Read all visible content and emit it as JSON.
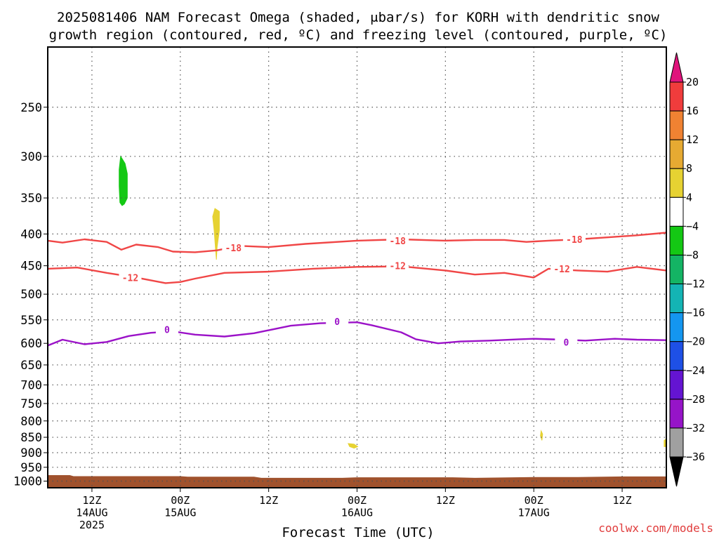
{
  "chart_data": {
    "type": "contour",
    "title_line1": "2025081406 NAM Forecast Omega (shaded, μbar/s) for KORH with dendritic snow",
    "title_line2": "growth region (contoured, red, ºC) and freezing level (contoured, purple, ºC)",
    "xlabel": "Forecast Time (UTC)",
    "watermark": "coolwx.com/models",
    "x_unit": "forecast hours since 2025-08-14 06Z",
    "xlim": [
      0,
      84
    ],
    "ylim_hPa": [
      200,
      1025
    ],
    "y_scale": "log",
    "grid": true,
    "y_ticks": [
      250,
      300,
      350,
      400,
      450,
      500,
      550,
      600,
      650,
      700,
      750,
      800,
      850,
      900,
      950,
      1000
    ],
    "x_ticks": [
      {
        "x": 6,
        "lines": [
          "12Z",
          "14AUG",
          "2025"
        ]
      },
      {
        "x": 18,
        "lines": [
          "00Z",
          "15AUG"
        ]
      },
      {
        "x": 30,
        "lines": [
          "12Z"
        ]
      },
      {
        "x": 42,
        "lines": [
          "00Z",
          "16AUG"
        ]
      },
      {
        "x": 54,
        "lines": [
          "12Z"
        ]
      },
      {
        "x": 66,
        "lines": [
          "00Z",
          "17AUG"
        ]
      },
      {
        "x": 78,
        "lines": [
          "12Z"
        ]
      }
    ],
    "colorbar": {
      "labels": [
        "20",
        "16",
        "12",
        "8",
        "4",
        "−4",
        "−8",
        "−12",
        "−16",
        "−20",
        "−24",
        "−28",
        "−32",
        "−36"
      ],
      "top_triangle_color": "#e0147c",
      "bottom_triangle_color": "#000000",
      "bins": [
        {
          "color": "#f03c3c"
        },
        {
          "color": "#f08232"
        },
        {
          "color": "#e6aa32"
        },
        {
          "color": "#e6d232"
        },
        {
          "color": "#ffffff"
        },
        {
          "color": "#14c814"
        },
        {
          "color": "#14b464"
        },
        {
          "color": "#14b4b4"
        },
        {
          "color": "#1496f0"
        },
        {
          "color": "#1e50e6"
        },
        {
          "color": "#6414d2"
        },
        {
          "color": "#9614c8"
        },
        {
          "color": "#a0a0a0"
        }
      ]
    },
    "series": [
      {
        "label": "-18",
        "color": "#f04646",
        "label_at": [
          {
            "x": 25.2,
            "p": 421
          },
          {
            "x": 47.5,
            "p": 410
          },
          {
            "x": 71.5,
            "p": 408
          }
        ],
        "points": [
          [
            0,
            410
          ],
          [
            2,
            413
          ],
          [
            5,
            408
          ],
          [
            8,
            412
          ],
          [
            10,
            424
          ],
          [
            12,
            416
          ],
          [
            15,
            420
          ],
          [
            17,
            427
          ],
          [
            20,
            428
          ],
          [
            23,
            425
          ],
          [
            26,
            418
          ],
          [
            30,
            420
          ],
          [
            35,
            415
          ],
          [
            42,
            410
          ],
          [
            48,
            408
          ],
          [
            54,
            410
          ],
          [
            58,
            409
          ],
          [
            62,
            409
          ],
          [
            65,
            412
          ],
          [
            68,
            410
          ],
          [
            72,
            408
          ],
          [
            76,
            405
          ],
          [
            80,
            402
          ],
          [
            84,
            398
          ]
        ]
      },
      {
        "label": "-12",
        "color": "#f04646",
        "label_at": [
          {
            "x": 11.2,
            "p": 470
          },
          {
            "x": 47.5,
            "p": 450
          },
          {
            "x": 69.8,
            "p": 455
          }
        ],
        "points": [
          [
            0,
            455
          ],
          [
            4,
            453
          ],
          [
            8,
            462
          ],
          [
            12,
            470
          ],
          [
            16,
            480
          ],
          [
            18,
            478
          ],
          [
            20,
            472
          ],
          [
            24,
            462
          ],
          [
            30,
            460
          ],
          [
            36,
            455
          ],
          [
            42,
            452
          ],
          [
            48,
            451
          ],
          [
            54,
            458
          ],
          [
            58,
            465
          ],
          [
            62,
            462
          ],
          [
            66,
            470
          ],
          [
            68,
            455
          ],
          [
            72,
            458
          ],
          [
            76,
            460
          ],
          [
            80,
            452
          ],
          [
            84,
            458
          ]
        ]
      },
      {
        "label": "0",
        "color": "#9b12c8",
        "label_at": [
          {
            "x": 16.2,
            "p": 570
          },
          {
            "x": 39.3,
            "p": 553
          },
          {
            "x": 70.4,
            "p": 597
          }
        ],
        "points": [
          [
            0,
            605
          ],
          [
            2,
            592
          ],
          [
            5,
            602
          ],
          [
            8,
            597
          ],
          [
            11,
            584
          ],
          [
            14,
            577
          ],
          [
            17,
            574
          ],
          [
            20,
            581
          ],
          [
            24,
            585
          ],
          [
            28,
            578
          ],
          [
            33,
            562
          ],
          [
            37,
            557
          ],
          [
            42,
            555
          ],
          [
            44,
            561
          ],
          [
            48,
            576
          ],
          [
            50,
            591
          ],
          [
            53,
            600
          ],
          [
            56,
            596
          ],
          [
            60,
            594
          ],
          [
            64,
            591
          ],
          [
            66,
            590
          ],
          [
            70,
            592
          ],
          [
            73,
            594
          ],
          [
            77,
            590
          ],
          [
            80,
            592
          ],
          [
            84,
            593
          ]
        ]
      }
    ],
    "shaded_regions": [
      {
        "name": "green-negative-omega",
        "color": "#14c814",
        "band": "-4 to -8",
        "outline": [
          [
            9.9,
            300
          ],
          [
            10.5,
            308
          ],
          [
            10.8,
            320
          ],
          [
            10.8,
            350
          ],
          [
            10.4,
            358
          ],
          [
            10.1,
            360
          ],
          [
            9.8,
            356
          ],
          [
            9.7,
            335
          ],
          [
            9.7,
            315
          ]
        ]
      },
      {
        "name": "yellow-positive-omega-1",
        "color": "#e6d232",
        "band": "4 to 8",
        "outline": [
          [
            22.7,
            364
          ],
          [
            23.3,
            368
          ],
          [
            23.3,
            395
          ],
          [
            23.0,
            420
          ],
          [
            22.9,
            440
          ],
          [
            22.8,
            425
          ],
          [
            22.6,
            395
          ],
          [
            22.4,
            375
          ]
        ]
      },
      {
        "name": "yellow-positive-omega-2",
        "color": "#e6d232",
        "band": "4 to 8",
        "outline": [
          [
            40.8,
            870
          ],
          [
            41.6,
            872
          ],
          [
            42.1,
            880
          ],
          [
            41.6,
            885
          ],
          [
            41.0,
            880
          ]
        ]
      },
      {
        "name": "yellow-positive-omega-3",
        "color": "#e6d232",
        "band": "4 to 8",
        "outline": [
          [
            67.0,
            830
          ],
          [
            67.2,
            840
          ],
          [
            67.1,
            860
          ],
          [
            66.9,
            845
          ]
        ]
      },
      {
        "name": "yellow-positive-omega-4",
        "color": "#e6d232",
        "band": "4 to 8",
        "outline": [
          [
            83.7,
            860
          ],
          [
            84,
            855
          ],
          [
            84,
            880
          ],
          [
            83.7,
            880
          ]
        ]
      }
    ],
    "terrain": {
      "color": "#a0522d",
      "surface_points": [
        [
          0,
          978
        ],
        [
          3,
          978
        ],
        [
          3.5,
          982
        ],
        [
          10,
          982
        ],
        [
          18,
          982
        ],
        [
          19,
          984
        ],
        [
          28,
          984
        ],
        [
          29,
          988
        ],
        [
          40,
          988
        ],
        [
          42,
          986
        ],
        [
          55,
          986
        ],
        [
          58,
          988
        ],
        [
          66,
          985
        ],
        [
          72,
          985
        ],
        [
          78,
          983
        ],
        [
          84,
          983
        ]
      ]
    }
  }
}
